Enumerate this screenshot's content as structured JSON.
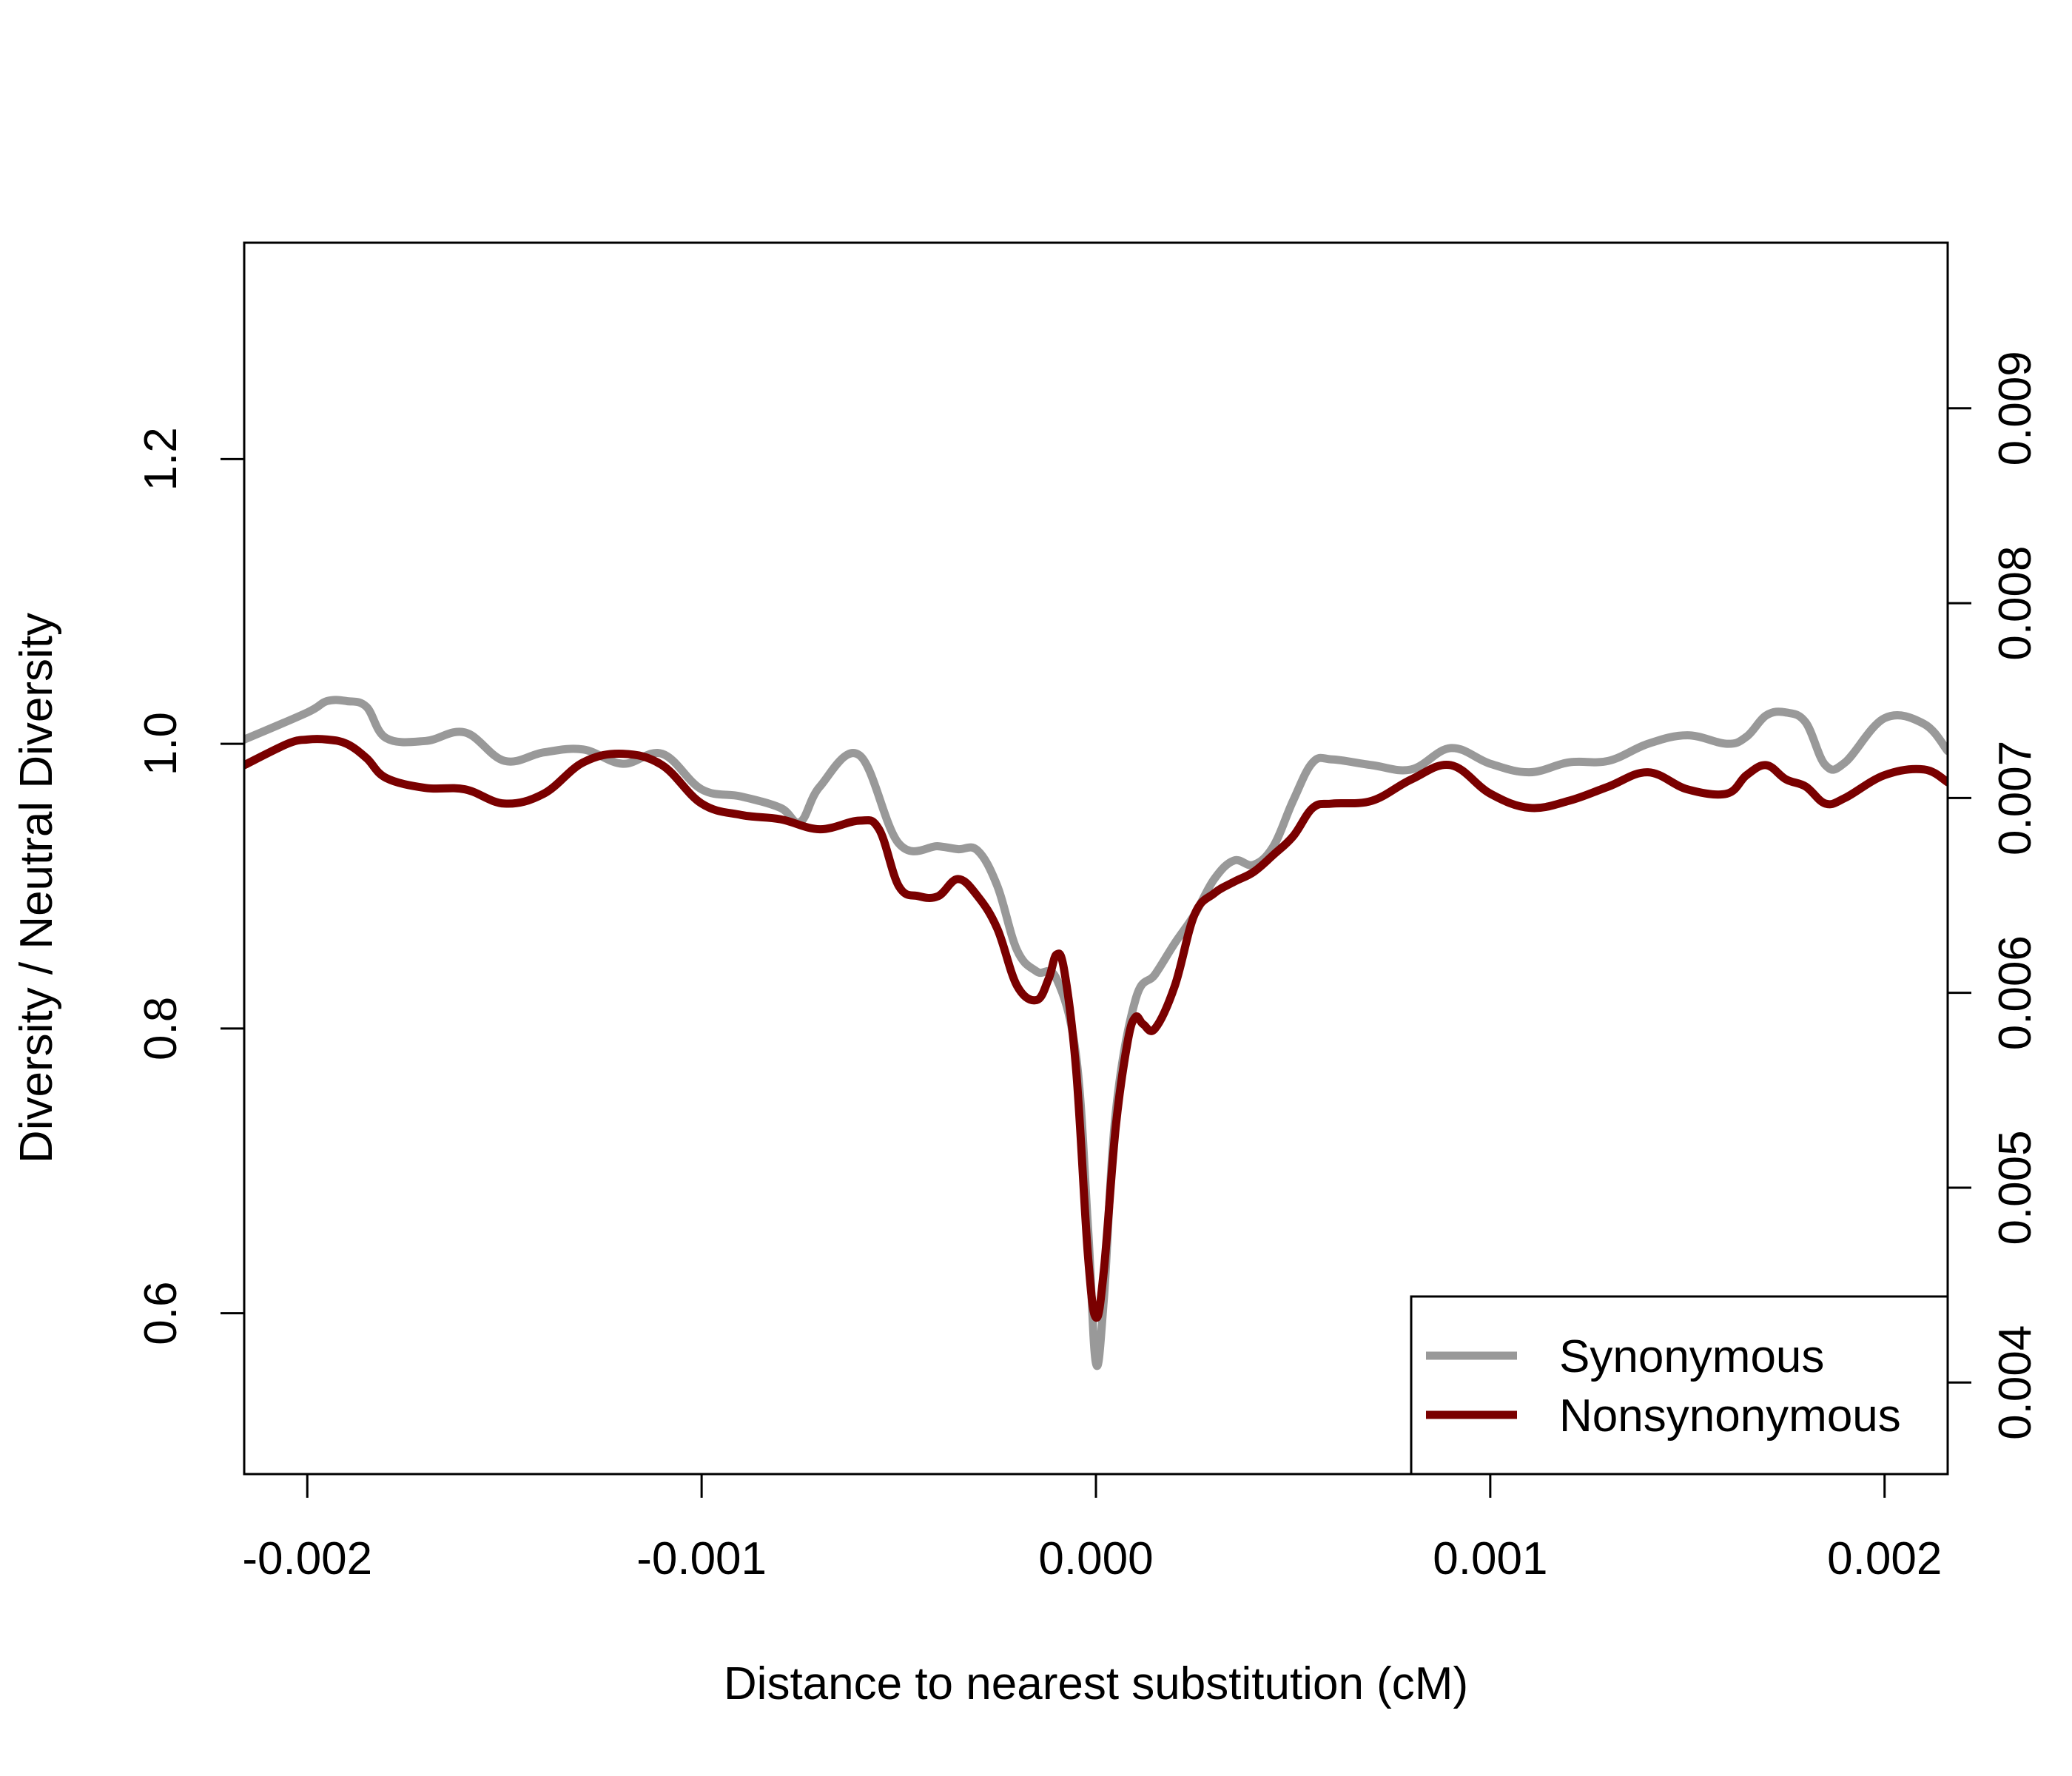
{
  "chart_data": {
    "type": "line",
    "title": "",
    "xlabel": "Distance to nearest substitution (cM)",
    "ylabel": "Diversity / Neutral Diversity",
    "xlim": [
      -0.00216,
      0.00216
    ],
    "ylim": [
      0.487,
      1.352
    ],
    "y2lim": [
      0.00353,
      0.00985
    ],
    "x_ticks": [
      -0.002,
      -0.001,
      0.0,
      0.001,
      0.002
    ],
    "x_tick_labels": [
      "-0.002",
      "-0.001",
      "0.000",
      "0.001",
      "0.002"
    ],
    "y_ticks": [
      0.6,
      0.8,
      1.0,
      1.2
    ],
    "y_tick_labels": [
      "0.6",
      "0.8",
      "1.0",
      "1.2"
    ],
    "y2_ticks": [
      0.004,
      0.005,
      0.006,
      0.007,
      0.008,
      0.009
    ],
    "y2_tick_labels": [
      "0.004",
      "0.005",
      "0.006",
      "0.007",
      "0.008",
      "0.009"
    ],
    "grid": false,
    "legend_position": "bottom-right",
    "series": [
      {
        "name": "Synonymous",
        "color": "#999999",
        "x": [
          -0.00216,
          -0.002,
          -0.00195,
          -0.0019,
          -0.00185,
          -0.0018,
          -0.0017,
          -0.0016,
          -0.0015,
          -0.0014,
          -0.0013,
          -0.0012,
          -0.0011,
          -0.001,
          -0.0009,
          -0.0008,
          -0.00075,
          -0.0007,
          -0.0006,
          -0.0005,
          -0.0004,
          -0.00035,
          -0.0003,
          -0.00025,
          -0.0002,
          -0.00015,
          -0.0001,
          -5e-05,
          -2e-05,
          0.0,
          2e-05,
          5e-05,
          0.0001,
          0.00015,
          0.0002,
          0.00025,
          0.0003,
          0.00035,
          0.0004,
          0.00045,
          0.0005,
          0.00055,
          0.0006,
          0.0007,
          0.0008,
          0.0009,
          0.001,
          0.0011,
          0.0012,
          0.0013,
          0.0014,
          0.0015,
          0.0016,
          0.00165,
          0.0017,
          0.00175,
          0.0018,
          0.00185,
          0.0019,
          0.002,
          0.0021,
          0.00216
        ],
        "values": [
          1.003,
          1.022,
          1.03,
          1.03,
          1.026,
          1.004,
          1.002,
          1.008,
          0.988,
          0.994,
          0.996,
          0.986,
          0.993,
          0.968,
          0.963,
          0.955,
          0.945,
          0.97,
          0.992,
          0.93,
          0.928,
          0.926,
          0.925,
          0.9,
          0.855,
          0.84,
          0.835,
          0.78,
          0.66,
          0.565,
          0.61,
          0.74,
          0.82,
          0.838,
          0.86,
          0.88,
          0.905,
          0.918,
          0.915,
          0.928,
          0.96,
          0.987,
          0.989,
          0.985,
          0.982,
          0.997,
          0.986,
          0.98,
          0.987,
          0.988,
          1.0,
          1.006,
          1.0,
          1.005,
          1.02,
          1.022,
          1.015,
          0.985,
          0.987,
          1.018,
          1.014,
          0.995
        ]
      },
      {
        "name": "Nonsynonymous",
        "color": "#7a0000",
        "x": [
          -0.00216,
          -0.00205,
          -0.002,
          -0.00195,
          -0.0019,
          -0.00185,
          -0.0018,
          -0.0017,
          -0.0016,
          -0.0015,
          -0.0014,
          -0.0013,
          -0.0012,
          -0.0011,
          -0.001,
          -0.0009,
          -0.0008,
          -0.0007,
          -0.0006,
          -0.00055,
          -0.0005,
          -0.00045,
          -0.0004,
          -0.00035,
          -0.0003,
          -0.00025,
          -0.0002,
          -0.00015,
          -0.00012,
          -0.0001,
          -8e-05,
          -5e-05,
          -2e-05,
          0.0,
          2e-05,
          5e-05,
          8e-05,
          0.0001,
          0.00012,
          0.00015,
          0.0002,
          0.00025,
          0.0003,
          0.00035,
          0.0004,
          0.00045,
          0.0005,
          0.00055,
          0.0006,
          0.0007,
          0.0008,
          0.0009,
          0.001,
          0.0011,
          0.0012,
          0.0013,
          0.0014,
          0.0015,
          0.0016,
          0.00165,
          0.0017,
          0.00175,
          0.0018,
          0.00185,
          0.0019,
          0.002,
          0.0021,
          0.00216
        ],
        "values": [
          0.985,
          1.0,
          1.003,
          1.003,
          1.0,
          0.99,
          0.976,
          0.969,
          0.968,
          0.958,
          0.965,
          0.987,
          0.993,
          0.985,
          0.958,
          0.95,
          0.947,
          0.94,
          0.946,
          0.94,
          0.9,
          0.893,
          0.893,
          0.905,
          0.893,
          0.87,
          0.83,
          0.82,
          0.835,
          0.852,
          0.84,
          0.77,
          0.64,
          0.597,
          0.63,
          0.73,
          0.79,
          0.808,
          0.803,
          0.8,
          0.83,
          0.88,
          0.895,
          0.903,
          0.91,
          0.922,
          0.935,
          0.955,
          0.958,
          0.96,
          0.975,
          0.985,
          0.965,
          0.955,
          0.96,
          0.97,
          0.98,
          0.968,
          0.965,
          0.978,
          0.985,
          0.975,
          0.97,
          0.958,
          0.962,
          0.978,
          0.982,
          0.973
        ]
      }
    ]
  }
}
